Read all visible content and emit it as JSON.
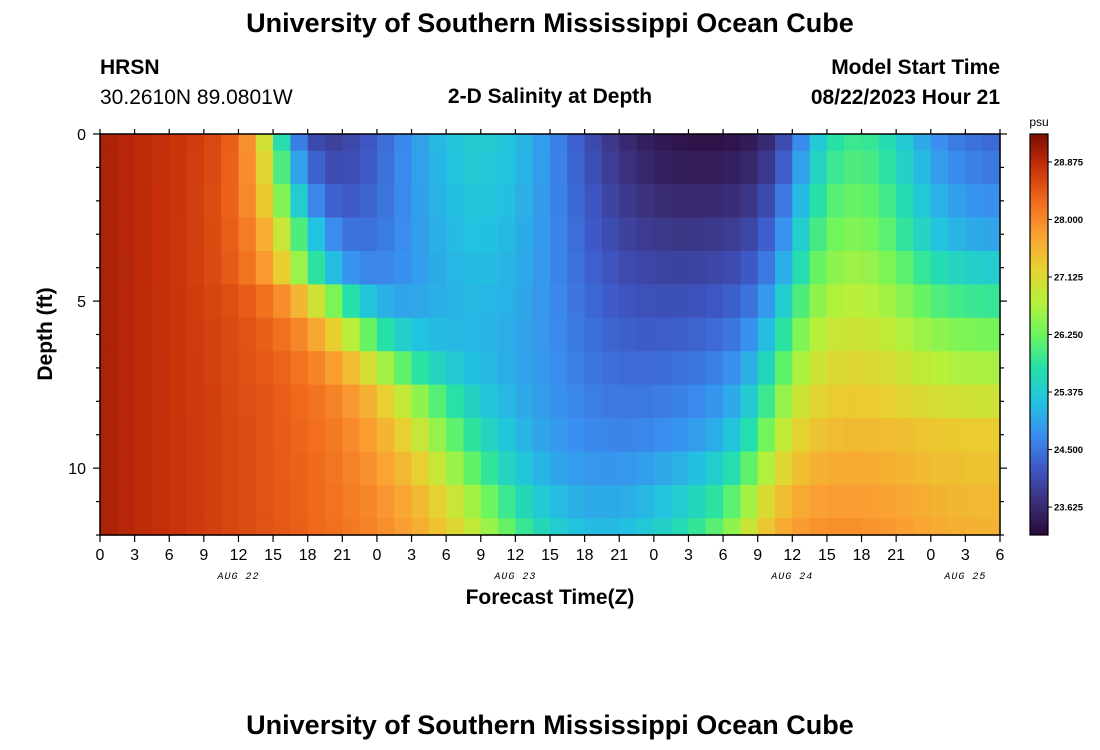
{
  "header": {
    "title": "University of Southern Mississippi Ocean Cube",
    "station": "HRSN",
    "coords": "30.2610N  89.0801W",
    "plot_title": "2-D Salinity at Depth",
    "start_label": "Model Start Time",
    "start_value": "08/22/2023 Hour 21"
  },
  "footer": {
    "title": "University of Southern Mississippi Ocean Cube"
  },
  "chart_data": {
    "type": "heatmap",
    "title": "2-D Salinity at Depth",
    "xlabel": "Forecast Time(Z)",
    "ylabel": "Depth (ft)",
    "x_unit": "hours since 2023-08-22 00Z",
    "xlim": [
      0,
      78
    ],
    "ylim": [
      0,
      12
    ],
    "y_inverted": true,
    "x_ticks": [
      "0",
      "3",
      "6",
      "9",
      "12",
      "15",
      "18",
      "21",
      "0",
      "3",
      "6",
      "9",
      "12",
      "15",
      "18",
      "21",
      "0",
      "3",
      "6",
      "9",
      "12",
      "15",
      "18",
      "21",
      "0",
      "3",
      "6"
    ],
    "y_ticks": [
      "0",
      "5",
      "10"
    ],
    "date_labels": [
      {
        "label": "AUG 22",
        "hour": 12
      },
      {
        "label": "AUG 23",
        "hour": 36
      },
      {
        "label": "AUG 24",
        "hour": 60
      },
      {
        "label": "AUG 25",
        "hour": 75
      }
    ],
    "depths_ft": [
      0.25,
      1.0,
      2.0,
      3.0,
      4.0,
      5.0,
      6.0,
      7.0,
      8.0,
      9.0,
      10.0,
      11.0,
      11.75
    ],
    "colorbar": {
      "unit": "psu",
      "min": 23.2,
      "max": 29.3,
      "ticks": [
        "28.875",
        "28.000",
        "27.125",
        "26.250",
        "25.375",
        "24.500",
        "23.625"
      ],
      "colors": [
        "#2a0a38",
        "#3b2f7a",
        "#3e58c6",
        "#3a8ef0",
        "#22c3e0",
        "#25e0a8",
        "#6cf55e",
        "#b8f03a",
        "#e8d030",
        "#fba033",
        "#f06a1c",
        "#c8300a",
        "#7c0c04"
      ]
    },
    "grid": false,
    "legend": "colorbar-right"
  }
}
